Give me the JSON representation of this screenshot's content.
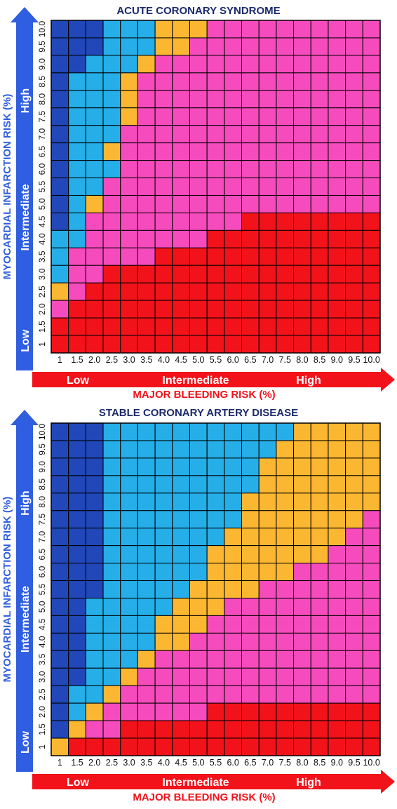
{
  "colors": {
    "dark_blue": "#2147b8",
    "light_blue": "#25aee8",
    "yellow": "#fbb731",
    "pink": "#f64bbd",
    "red": "#f2121a",
    "title_navy": "#1a2a6c",
    "arrow_blue": "#2f5ee0",
    "arrow_red": "#f2121a"
  },
  "legend_key": [
    "dark_blue",
    "light_blue",
    "yellow",
    "pink",
    "red"
  ],
  "x_axis": {
    "ticks": [
      "1",
      "1.5",
      "2.0",
      "2.5",
      "3.0",
      "3.5",
      "4.0",
      "4.5",
      "5.0",
      "5.5",
      "6.0",
      "6.5",
      "7.0",
      "7.5",
      "8.0",
      "8.5",
      "9.0",
      "9.5",
      "10.0"
    ],
    "label": "MAJOR BLEEDING RISK (%)",
    "bands": [
      "Low",
      "Intermediate",
      "High"
    ]
  },
  "y_axis": {
    "ticks": [
      "1",
      "1.5",
      "2.0",
      "2.5",
      "3.0",
      "3.5",
      "4.0",
      "4.5",
      "5.0",
      "5.5",
      "6.0",
      "6.5",
      "7.0",
      "7.5",
      "8.0",
      "8.5",
      "9.0",
      "9.5",
      "10.0"
    ],
    "label": "MYOCARDIAL INFARCTION RISK (%)",
    "bands": [
      "Low",
      "Intermediate",
      "High"
    ]
  },
  "chart_data": [
    {
      "type": "heatmap",
      "title": "ACUTE CORONARY SYNDROME",
      "xlabel": "MAJOR BLEEDING RISK (%)",
      "ylabel": "MYOCARDIAL INFARCTION RISK (%)",
      "x": [
        "1",
        "1.5",
        "2.0",
        "2.5",
        "3.0",
        "3.5",
        "4.0",
        "4.5",
        "5.0",
        "5.5",
        "6.0",
        "6.5",
        "7.0",
        "7.5",
        "8.0",
        "8.5",
        "9.0",
        "9.5",
        "10.0"
      ],
      "y": [
        "10.0",
        "9.5",
        "9.0",
        "8.5",
        "8.0",
        "7.5",
        "7.0",
        "6.5",
        "6.0",
        "5.5",
        "5.0",
        "4.5",
        "4.0",
        "3.5",
        "3.0",
        "2.5",
        "2.0",
        "1.5",
        "1"
      ],
      "grid": [
        [
          0,
          0,
          0,
          1,
          1,
          1,
          2,
          2,
          2,
          3,
          3,
          3,
          3,
          3,
          3,
          3,
          3,
          3,
          3
        ],
        [
          0,
          0,
          0,
          1,
          1,
          1,
          2,
          2,
          3,
          3,
          3,
          3,
          3,
          3,
          3,
          3,
          3,
          3,
          3
        ],
        [
          0,
          0,
          1,
          1,
          1,
          2,
          3,
          3,
          3,
          3,
          3,
          3,
          3,
          3,
          3,
          3,
          3,
          3,
          3
        ],
        [
          0,
          1,
          1,
          1,
          2,
          3,
          3,
          3,
          3,
          3,
          3,
          3,
          3,
          3,
          3,
          3,
          3,
          3,
          3
        ],
        [
          0,
          1,
          1,
          1,
          2,
          3,
          3,
          3,
          3,
          3,
          3,
          3,
          3,
          3,
          3,
          3,
          3,
          3,
          3
        ],
        [
          0,
          1,
          1,
          1,
          2,
          3,
          3,
          3,
          3,
          3,
          3,
          3,
          3,
          3,
          3,
          3,
          3,
          3,
          3
        ],
        [
          0,
          1,
          1,
          1,
          3,
          3,
          3,
          3,
          3,
          3,
          3,
          3,
          3,
          3,
          3,
          3,
          3,
          3,
          3
        ],
        [
          0,
          1,
          1,
          2,
          3,
          3,
          3,
          3,
          3,
          3,
          3,
          3,
          3,
          3,
          3,
          3,
          3,
          3,
          3
        ],
        [
          0,
          1,
          1,
          1,
          3,
          3,
          3,
          3,
          3,
          3,
          3,
          3,
          3,
          3,
          3,
          3,
          3,
          3,
          3
        ],
        [
          0,
          1,
          1,
          3,
          3,
          3,
          3,
          3,
          3,
          3,
          3,
          3,
          3,
          3,
          3,
          3,
          3,
          3,
          3
        ],
        [
          0,
          1,
          2,
          3,
          3,
          3,
          3,
          3,
          3,
          3,
          3,
          3,
          3,
          3,
          3,
          3,
          3,
          3,
          3
        ],
        [
          0,
          1,
          3,
          3,
          3,
          3,
          3,
          3,
          3,
          3,
          3,
          4,
          4,
          4,
          4,
          4,
          4,
          4,
          4
        ],
        [
          1,
          1,
          3,
          3,
          3,
          3,
          3,
          3,
          3,
          4,
          4,
          4,
          4,
          4,
          4,
          4,
          4,
          4,
          4
        ],
        [
          1,
          3,
          3,
          3,
          3,
          3,
          4,
          4,
          4,
          4,
          4,
          4,
          4,
          4,
          4,
          4,
          4,
          4,
          4
        ],
        [
          1,
          3,
          3,
          4,
          4,
          4,
          4,
          4,
          4,
          4,
          4,
          4,
          4,
          4,
          4,
          4,
          4,
          4,
          4
        ],
        [
          2,
          3,
          4,
          4,
          4,
          4,
          4,
          4,
          4,
          4,
          4,
          4,
          4,
          4,
          4,
          4,
          4,
          4,
          4
        ],
        [
          3,
          4,
          4,
          4,
          4,
          4,
          4,
          4,
          4,
          4,
          4,
          4,
          4,
          4,
          4,
          4,
          4,
          4,
          4
        ],
        [
          4,
          4,
          4,
          4,
          4,
          4,
          4,
          4,
          4,
          4,
          4,
          4,
          4,
          4,
          4,
          4,
          4,
          4,
          4
        ],
        [
          4,
          4,
          4,
          4,
          4,
          4,
          4,
          4,
          4,
          4,
          4,
          4,
          4,
          4,
          4,
          4,
          4,
          4,
          4
        ]
      ]
    },
    {
      "type": "heatmap",
      "title": "STABLE CORONARY ARTERY DISEASE",
      "xlabel": "MAJOR BLEEDING RISK (%)",
      "ylabel": "MYOCARDIAL INFARCTION RISK (%)",
      "x": [
        "1",
        "1.5",
        "2.0",
        "2.5",
        "3.0",
        "3.5",
        "4.0",
        "4.5",
        "5.0",
        "5.5",
        "6.0",
        "6.5",
        "7.0",
        "7.5",
        "8.0",
        "8.5",
        "9.0",
        "9.5",
        "10.0"
      ],
      "y": [
        "10.0",
        "9.5",
        "9.0",
        "8.5",
        "8.0",
        "7.5",
        "7.0",
        "6.5",
        "6.0",
        "5.5",
        "5.0",
        "4.5",
        "4.0",
        "3.5",
        "3.0",
        "2.5",
        "2.0",
        "1.5",
        "1"
      ],
      "grid": [
        [
          0,
          0,
          0,
          1,
          1,
          1,
          1,
          1,
          1,
          1,
          1,
          1,
          1,
          1,
          2,
          2,
          2,
          2,
          2
        ],
        [
          0,
          0,
          0,
          1,
          1,
          1,
          1,
          1,
          1,
          1,
          1,
          1,
          1,
          2,
          2,
          2,
          2,
          2,
          2
        ],
        [
          0,
          0,
          0,
          1,
          1,
          1,
          1,
          1,
          1,
          1,
          1,
          1,
          2,
          2,
          2,
          2,
          2,
          2,
          2
        ],
        [
          0,
          0,
          0,
          1,
          1,
          1,
          1,
          1,
          1,
          1,
          1,
          1,
          2,
          2,
          2,
          2,
          2,
          2,
          2
        ],
        [
          0,
          0,
          0,
          1,
          1,
          1,
          1,
          1,
          1,
          1,
          1,
          2,
          2,
          2,
          2,
          2,
          2,
          2,
          2
        ],
        [
          0,
          0,
          0,
          1,
          1,
          1,
          1,
          1,
          1,
          1,
          1,
          2,
          2,
          2,
          2,
          2,
          2,
          2,
          3
        ],
        [
          0,
          0,
          0,
          1,
          1,
          1,
          1,
          1,
          1,
          1,
          2,
          2,
          2,
          2,
          2,
          2,
          2,
          3,
          3
        ],
        [
          0,
          0,
          0,
          1,
          1,
          1,
          1,
          1,
          1,
          2,
          2,
          2,
          2,
          2,
          2,
          2,
          3,
          3,
          3
        ],
        [
          0,
          0,
          0,
          1,
          1,
          1,
          1,
          1,
          1,
          2,
          2,
          2,
          2,
          2,
          3,
          3,
          3,
          3,
          3
        ],
        [
          0,
          0,
          0,
          1,
          1,
          1,
          1,
          1,
          2,
          2,
          2,
          2,
          3,
          3,
          3,
          3,
          3,
          3,
          3
        ],
        [
          0,
          0,
          1,
          1,
          1,
          1,
          1,
          2,
          2,
          2,
          3,
          3,
          3,
          3,
          3,
          3,
          3,
          3,
          3
        ],
        [
          0,
          0,
          1,
          1,
          1,
          1,
          2,
          2,
          2,
          3,
          3,
          3,
          3,
          3,
          3,
          3,
          3,
          3,
          3
        ],
        [
          0,
          0,
          1,
          1,
          1,
          1,
          2,
          2,
          3,
          3,
          3,
          3,
          3,
          3,
          3,
          3,
          3,
          3,
          3
        ],
        [
          0,
          0,
          1,
          1,
          1,
          2,
          3,
          3,
          3,
          3,
          3,
          3,
          3,
          3,
          3,
          3,
          3,
          3,
          3
        ],
        [
          0,
          0,
          1,
          1,
          2,
          3,
          3,
          3,
          3,
          3,
          3,
          3,
          3,
          3,
          3,
          3,
          3,
          3,
          3
        ],
        [
          0,
          1,
          1,
          2,
          3,
          3,
          3,
          3,
          3,
          3,
          3,
          3,
          3,
          3,
          3,
          3,
          3,
          3,
          3
        ],
        [
          0,
          1,
          2,
          3,
          3,
          3,
          3,
          3,
          3,
          4,
          4,
          4,
          4,
          4,
          4,
          4,
          4,
          4,
          4
        ],
        [
          0,
          2,
          3,
          3,
          4,
          4,
          4,
          4,
          4,
          4,
          4,
          4,
          4,
          4,
          4,
          4,
          4,
          4,
          4
        ],
        [
          2,
          4,
          4,
          4,
          4,
          4,
          4,
          4,
          4,
          4,
          4,
          4,
          4,
          4,
          4,
          4,
          4,
          4,
          4
        ]
      ]
    }
  ]
}
